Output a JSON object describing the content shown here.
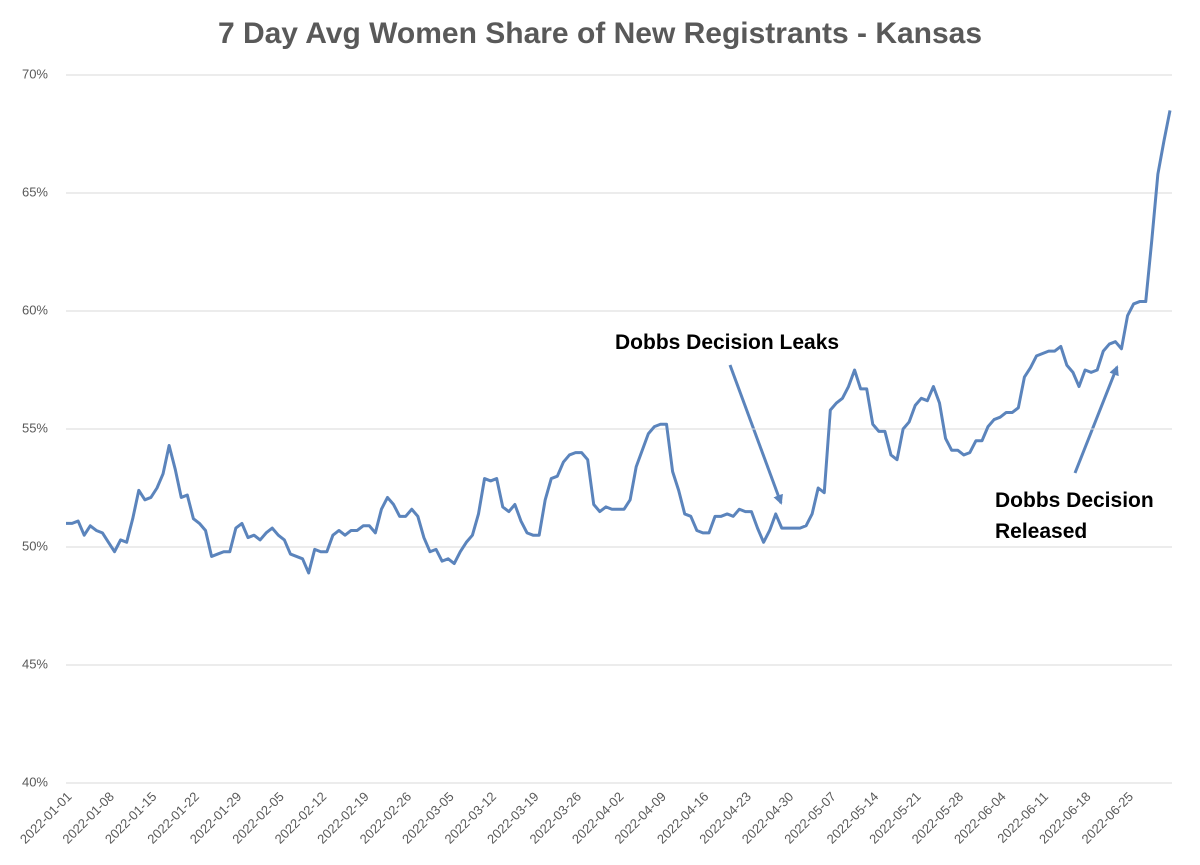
{
  "chart_data": {
    "type": "line",
    "title": "7 Day Avg Women Share of New Registrants - Kansas",
    "x": [
      "2022-01-01",
      "2022-01-02",
      "2022-01-03",
      "2022-01-04",
      "2022-01-05",
      "2022-01-06",
      "2022-01-07",
      "2022-01-08",
      "2022-01-09",
      "2022-01-10",
      "2022-01-11",
      "2022-01-12",
      "2022-01-13",
      "2022-01-14",
      "2022-01-15",
      "2022-01-16",
      "2022-01-17",
      "2022-01-18",
      "2022-01-19",
      "2022-01-20",
      "2022-01-21",
      "2022-01-22",
      "2022-01-23",
      "2022-01-24",
      "2022-01-25",
      "2022-01-26",
      "2022-01-27",
      "2022-01-28",
      "2022-01-29",
      "2022-01-30",
      "2022-01-31",
      "2022-02-01",
      "2022-02-02",
      "2022-02-03",
      "2022-02-04",
      "2022-02-05",
      "2022-02-06",
      "2022-02-07",
      "2022-02-08",
      "2022-02-09",
      "2022-02-10",
      "2022-02-11",
      "2022-02-12",
      "2022-02-13",
      "2022-02-14",
      "2022-02-15",
      "2022-02-16",
      "2022-02-17",
      "2022-02-18",
      "2022-02-19",
      "2022-02-20",
      "2022-02-21",
      "2022-02-22",
      "2022-02-23",
      "2022-02-24",
      "2022-02-25",
      "2022-02-26",
      "2022-02-27",
      "2022-02-28",
      "2022-03-01",
      "2022-03-02",
      "2022-03-03",
      "2022-03-04",
      "2022-03-05",
      "2022-03-06",
      "2022-03-07",
      "2022-03-08",
      "2022-03-09",
      "2022-03-10",
      "2022-03-11",
      "2022-03-12",
      "2022-03-13",
      "2022-03-14",
      "2022-03-15",
      "2022-03-16",
      "2022-03-17",
      "2022-03-18",
      "2022-03-19",
      "2022-03-20",
      "2022-03-21",
      "2022-03-22",
      "2022-03-23",
      "2022-03-24",
      "2022-03-25",
      "2022-03-26",
      "2022-03-27",
      "2022-03-28",
      "2022-03-29",
      "2022-03-30",
      "2022-03-31",
      "2022-04-01",
      "2022-04-02",
      "2022-04-03",
      "2022-04-04",
      "2022-04-05",
      "2022-04-06",
      "2022-04-07",
      "2022-04-08",
      "2022-04-09",
      "2022-04-10",
      "2022-04-11",
      "2022-04-12",
      "2022-04-13",
      "2022-04-14",
      "2022-04-15",
      "2022-04-16",
      "2022-04-17",
      "2022-04-18",
      "2022-04-19",
      "2022-04-20",
      "2022-04-21",
      "2022-04-22",
      "2022-04-23",
      "2022-04-24",
      "2022-04-25",
      "2022-04-26",
      "2022-04-27",
      "2022-04-28",
      "2022-04-29",
      "2022-04-30",
      "2022-05-01",
      "2022-05-02",
      "2022-05-03",
      "2022-05-04",
      "2022-05-05",
      "2022-05-06",
      "2022-05-07",
      "2022-05-08",
      "2022-05-09",
      "2022-05-10",
      "2022-05-11",
      "2022-05-12",
      "2022-05-13",
      "2022-05-14",
      "2022-05-15",
      "2022-05-16",
      "2022-05-17",
      "2022-05-18",
      "2022-05-19",
      "2022-05-20",
      "2022-05-21",
      "2022-05-22",
      "2022-05-23",
      "2022-05-24",
      "2022-05-25",
      "2022-05-26",
      "2022-05-27",
      "2022-05-28",
      "2022-05-29",
      "2022-05-30",
      "2022-05-31",
      "2022-06-01",
      "2022-06-02",
      "2022-06-03",
      "2022-06-04",
      "2022-06-05",
      "2022-06-06",
      "2022-06-07",
      "2022-06-08",
      "2022-06-09",
      "2022-06-10",
      "2022-06-11",
      "2022-06-12",
      "2022-06-13",
      "2022-06-14",
      "2022-06-15",
      "2022-06-16",
      "2022-06-17",
      "2022-06-18",
      "2022-06-19",
      "2022-06-20",
      "2022-06-21",
      "2022-06-22",
      "2022-06-23",
      "2022-06-24",
      "2022-06-25",
      "2022-06-26",
      "2022-06-27",
      "2022-06-28",
      "2022-06-29",
      "2022-06-30",
      "2022-07-01",
      "2022-07-02"
    ],
    "values": [
      51.0,
      51.0,
      51.1,
      50.5,
      50.9,
      50.7,
      50.6,
      50.2,
      49.8,
      50.3,
      50.2,
      51.2,
      52.4,
      52.0,
      52.1,
      52.5,
      53.1,
      54.3,
      53.3,
      52.1,
      52.2,
      51.2,
      51.0,
      50.7,
      49.6,
      49.7,
      49.8,
      49.8,
      50.8,
      51.0,
      50.4,
      50.5,
      50.3,
      50.6,
      50.8,
      50.5,
      50.3,
      49.7,
      49.6,
      49.5,
      48.9,
      49.9,
      49.8,
      49.8,
      50.5,
      50.7,
      50.5,
      50.7,
      50.7,
      50.9,
      50.9,
      50.6,
      51.6,
      52.1,
      51.8,
      51.3,
      51.3,
      51.6,
      51.3,
      50.4,
      49.8,
      49.9,
      49.4,
      49.5,
      49.3,
      49.8,
      50.2,
      50.5,
      51.4,
      52.9,
      52.8,
      52.9,
      51.7,
      51.5,
      51.8,
      51.1,
      50.6,
      50.5,
      50.5,
      52.0,
      52.9,
      53.0,
      53.6,
      53.9,
      54.0,
      54.0,
      53.7,
      51.8,
      51.5,
      51.7,
      51.6,
      51.6,
      51.6,
      52.0,
      53.4,
      54.1,
      54.8,
      55.1,
      55.2,
      55.2,
      53.2,
      52.4,
      51.4,
      51.3,
      50.7,
      50.6,
      50.6,
      51.3,
      51.3,
      51.4,
      51.3,
      51.6,
      51.5,
      51.5,
      50.8,
      50.2,
      50.7,
      51.4,
      50.8,
      50.8,
      50.8,
      50.8,
      50.9,
      51.4,
      52.5,
      52.3,
      55.8,
      56.1,
      56.3,
      56.8,
      57.5,
      56.7,
      56.7,
      55.2,
      54.9,
      54.9,
      53.9,
      53.7,
      55.0,
      55.3,
      56.0,
      56.3,
      56.2,
      56.8,
      56.1,
      54.6,
      54.1,
      54.1,
      53.9,
      54.0,
      54.5,
      54.5,
      55.1,
      55.4,
      55.5,
      55.7,
      55.7,
      55.9,
      57.2,
      57.6,
      58.1,
      58.2,
      58.3,
      58.3,
      58.5,
      57.7,
      57.4,
      56.8,
      57.5,
      57.4,
      57.5,
      58.3,
      58.6,
      58.7,
      58.4,
      59.8,
      60.3,
      60.4,
      60.4,
      63.0,
      65.8,
      67.2,
      68.5
    ],
    "color": "#5b84bc",
    "xticks": [
      "2022-01-01",
      "2022-01-08",
      "2022-01-15",
      "2022-01-22",
      "2022-01-29",
      "2022-02-05",
      "2022-02-12",
      "2022-02-19",
      "2022-02-26",
      "2022-03-05",
      "2022-03-12",
      "2022-03-19",
      "2022-03-26",
      "2022-04-02",
      "2022-04-09",
      "2022-04-16",
      "2022-04-23",
      "2022-04-30",
      "2022-05-07",
      "2022-05-14",
      "2022-05-21",
      "2022-05-28",
      "2022-06-04",
      "2022-06-11",
      "2022-06-18",
      "2022-06-25"
    ],
    "ylim": [
      40,
      70
    ],
    "yticks": [
      {
        "value": 40,
        "label": "40%"
      },
      {
        "value": 45,
        "label": "45%"
      },
      {
        "value": 50,
        "label": "50%"
      },
      {
        "value": 55,
        "label": "55%"
      },
      {
        "value": 60,
        "label": "60%"
      },
      {
        "value": 65,
        "label": "65%"
      },
      {
        "value": 70,
        "label": "70%"
      }
    ],
    "grid": true,
    "annotations": [
      "Dobbs Decision Leaks",
      "Dobbs Decision Released"
    ]
  }
}
